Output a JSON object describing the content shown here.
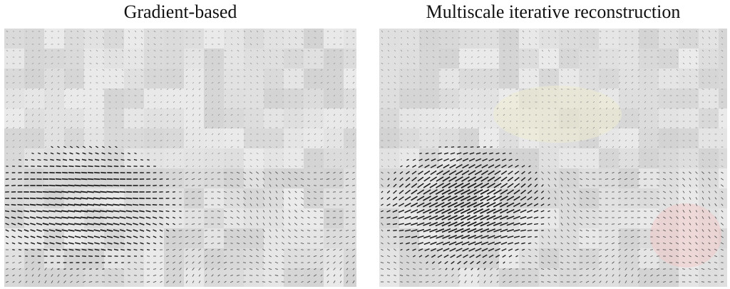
{
  "figure": {
    "panels": [
      {
        "id": "gradient",
        "title": "Gradient-based"
      },
      {
        "id": "multiscale",
        "title": "Multiscale iterative reconstruction"
      }
    ]
  },
  "colors": {
    "background": "#ffffff",
    "field_gray": "#d9d9d9",
    "vector_dark": "#1a1a1a",
    "vector_light": "#9a9a9a",
    "title": "#111111",
    "accent_pink": "#f2c8c8",
    "accent_yellow": "#efeccf"
  }
}
